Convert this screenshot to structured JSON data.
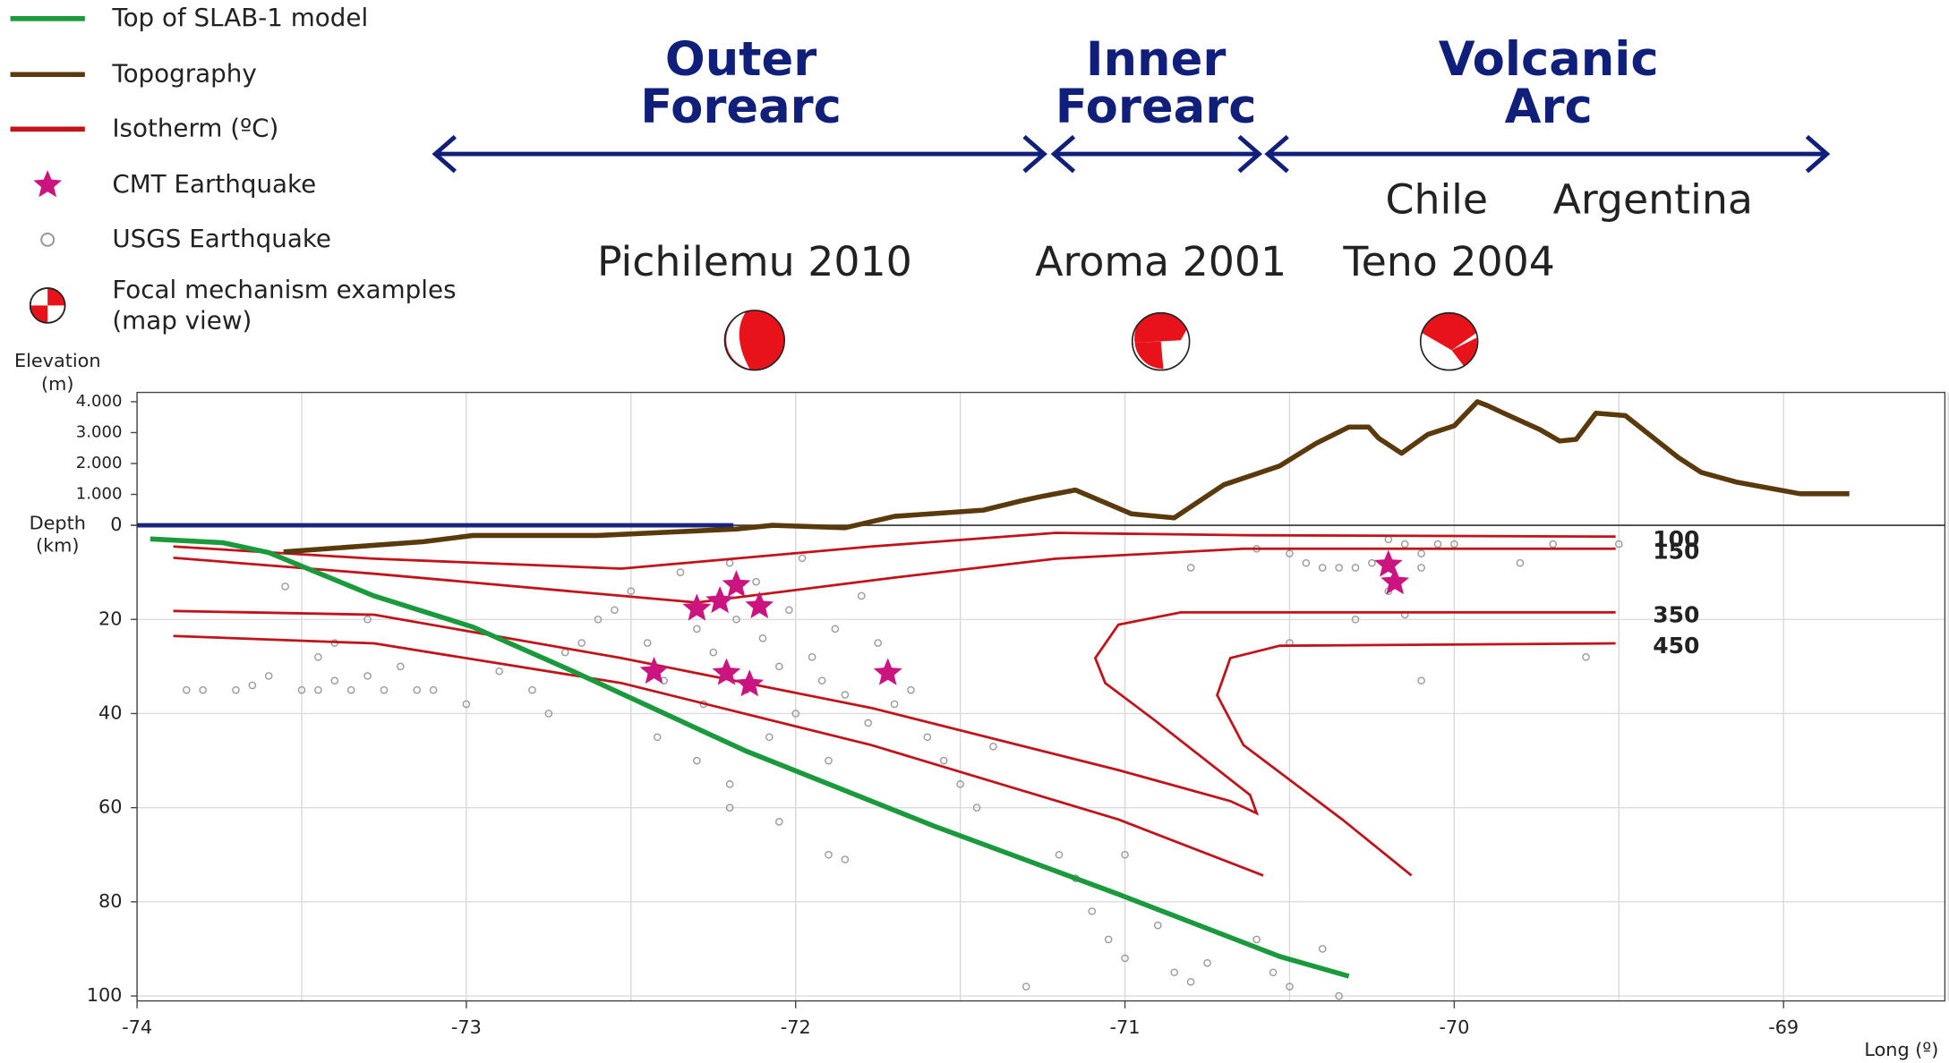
{
  "chart_data": {
    "type": "line",
    "xlabel": "Long (º)",
    "xlim": [
      -74,
      -68.51
    ],
    "xticks": [
      -74,
      -73,
      -72,
      -71,
      -70,
      -69
    ],
    "xminor": [
      -73.5,
      -72.5,
      -71.5,
      -70.5,
      -69.5,
      -68.5
    ],
    "elevation_axis": {
      "label": [
        "Elevation",
        "(m)"
      ],
      "ylim": [
        0,
        4300
      ],
      "yticks": [
        {
          "value": 4000,
          "label": "4.000"
        },
        {
          "value": 3000,
          "label": "3.000"
        },
        {
          "value": 2000,
          "label": "2.000"
        },
        {
          "value": 1000,
          "label": "1.000"
        },
        0
      ]
    },
    "depth_axis": {
      "label": [
        "Depth",
        "(km)"
      ],
      "ylim": [
        0,
        100
      ],
      "inverted": true,
      "yticks": [
        0,
        20,
        40,
        60,
        80,
        100
      ],
      "grid": true
    },
    "annotations": {
      "regions": [
        {
          "lines": [
            "Outer",
            "Forearc"
          ]
        },
        {
          "lines": [
            "Inner",
            "Forearc"
          ]
        },
        {
          "lines": [
            "Volcanic",
            "Arc"
          ]
        }
      ],
      "countries": [
        "Chile",
        "Argentina"
      ],
      "events": [
        "Pichilemu 2010",
        "Aroma 2001",
        "Teno 2004"
      ]
    },
    "focal_legend": [
      "Focal mechanism examples",
      "(map view)"
    ],
    "series": [
      {
        "name": "Top of SLAB-1 model",
        "type": "line",
        "axis": "depth",
        "color": "#1a9a3c",
        "x": [
          -73.96,
          -73.74,
          -73.6,
          -73.28,
          -72.98,
          -72.68,
          -72.15,
          -71.58,
          -71.02,
          -70.53,
          -70.32
        ],
        "values": [
          2.9,
          3.7,
          5.8,
          15,
          21.6,
          30.9,
          48,
          63.9,
          78.4,
          91.6,
          95.8
        ]
      },
      {
        "name": "Topography",
        "type": "line",
        "axis": "elevation",
        "color": "#5a3a0c",
        "x": [
          -73.555,
          -73.13,
          -72.98,
          -72.6,
          -72.18,
          -72.07,
          -71.85,
          -71.7,
          -71.43,
          -71.32,
          -71.25,
          -71.15,
          -70.98,
          -70.85,
          -70.7,
          -70.53,
          -70.42,
          -70.32,
          -70.26,
          -70.23,
          -70.16,
          -70.08,
          -70.0,
          -69.93,
          -69.9,
          -69.85,
          -69.74,
          -69.68,
          -69.63,
          -69.57,
          -69.48,
          -69.32,
          -69.25,
          -69.14,
          -68.95,
          -68.8
        ],
        "values": [
          -860,
          -530,
          -330,
          -330,
          -120,
          0,
          -80,
          290,
          490,
          780,
          940,
          1140,
          370,
          240,
          1310,
          1920,
          2650,
          3180,
          3180,
          2820,
          2330,
          2940,
          3220,
          4000,
          3880,
          3630,
          3100,
          2730,
          2780,
          3630,
          3550,
          2200,
          1710,
          1390,
          1020,
          1020
        ]
      },
      {
        "name": "Isotherm (ºC)",
        "type": "isolines",
        "axis": "depth",
        "color": "#c0141a",
        "lines": [
          {
            "label": "100",
            "x": [
              -73.89,
              -73.28,
              -72.53,
              -71.77,
              -71.21,
              -70.64,
              -69.51
            ],
            "values": [
              4.5,
              7.1,
              9.2,
              4.5,
              1.6,
              2.1,
              2.4
            ]
          },
          {
            "label": "150",
            "x": [
              -73.89,
              -73.28,
              -72.3,
              -71.7,
              -71.21,
              -70.64,
              -69.51
            ],
            "values": [
              6.9,
              10.3,
              16.4,
              11.1,
              7.1,
              5.0,
              5.0
            ]
          },
          {
            "label": "350",
            "x": [
              -73.89,
              -73.28,
              -72.53,
              -71.77,
              -71.02,
              -70.68,
              -70.6,
              -70.62,
              -70.91,
              -71.06,
              -71.09,
              -71.02,
              -70.83,
              -69.51
            ],
            "values": [
              18.2,
              19.0,
              28.2,
              38.8,
              52.0,
              58.6,
              61.2,
              57.3,
              41.4,
              33.5,
              28.2,
              21.1,
              18.5,
              18.5
            ]
          },
          {
            "label": "450",
            "x": [
              -73.89,
              -73.28,
              -72.53,
              -71.77,
              -71.02,
              -70.58,
              null,
              -70.13,
              -70.34,
              -70.64,
              -70.72,
              -70.68,
              -70.53,
              -69.51
            ],
            "values": [
              23.5,
              25.1,
              33.5,
              46.7,
              62.5,
              74.4,
              null,
              74.4,
              62.5,
              46.7,
              36.1,
              28.2,
              25.6,
              25.1
            ]
          }
        ]
      },
      {
        "name": "CMT Earthquake",
        "type": "star",
        "axis": "depth",
        "color": "#cc1480",
        "x": [
          -72.3,
          -72.23,
          -72.18,
          -72.11,
          -72.43,
          -72.21,
          -72.14,
          -71.72,
          -70.2,
          -70.18
        ],
        "values": [
          17.7,
          16.1,
          12.7,
          17.2,
          31.1,
          31.4,
          33.8,
          31.4,
          8.4,
          12.1
        ]
      },
      {
        "name": "USGS Earthquake",
        "type": "scatter",
        "axis": "depth",
        "color": "#9a9a9a",
        "x": [
          -73.5,
          -73.45,
          -73.4,
          -73.35,
          -73.3,
          -73.25,
          -73.2,
          -73.15,
          -73.1,
          -73.0,
          -73.45,
          -73.55,
          -73.3,
          -73.4,
          -73.6,
          -73.7,
          -73.8,
          -73.85,
          -73.65,
          -72.9,
          -72.8,
          -72.75,
          -72.7,
          -72.65,
          -72.6,
          -72.55,
          -72.5,
          -72.45,
          -72.4,
          -72.35,
          -72.3,
          -72.28,
          -72.25,
          -72.2,
          -72.18,
          -72.15,
          -72.12,
          -72.1,
          -72.08,
          -72.05,
          -72.02,
          -72.0,
          -71.98,
          -71.95,
          -71.92,
          -71.9,
          -71.88,
          -71.85,
          -71.8,
          -71.78,
          -71.75,
          -71.7,
          -71.65,
          -71.6,
          -71.55,
          -71.5,
          -71.45,
          -71.4,
          -72.42,
          -72.3,
          -72.2,
          -71.9,
          -71.85,
          -72.2,
          -72.05,
          -71.2,
          -71.15,
          -71.1,
          -71.05,
          -71.0,
          -71.0,
          -70.9,
          -70.85,
          -70.8,
          -70.75,
          -70.6,
          -70.55,
          -70.5,
          -71.3,
          -70.4,
          -70.35,
          -70.3,
          -70.25,
          -70.2,
          -70.15,
          -70.1,
          -70.05,
          -70.0,
          -70.35,
          -70.4,
          -70.45,
          -70.5,
          -70.6,
          -70.2,
          -70.1,
          -70.15,
          -70.3,
          -70.5,
          -70.1,
          -69.8,
          -69.5,
          -69.7,
          -70.8,
          -69.6
        ],
        "values": [
          35,
          35,
          33,
          35,
          32,
          35,
          30,
          35,
          35,
          38,
          28,
          13,
          20,
          25,
          32,
          35,
          35,
          35,
          34,
          31,
          35,
          40,
          27,
          25,
          20,
          18,
          14,
          25,
          33,
          10,
          22,
          38,
          27,
          8,
          20,
          35,
          12,
          24,
          45,
          30,
          18,
          40,
          7,
          28,
          33,
          50,
          22,
          36,
          15,
          42,
          25,
          38,
          35,
          45,
          50,
          55,
          60,
          47,
          45,
          50,
          55,
          70,
          71,
          60,
          63,
          70,
          75,
          82,
          88,
          70,
          92,
          85,
          95,
          97,
          93,
          88,
          95,
          98,
          98,
          90,
          100,
          9,
          8,
          3,
          4,
          6,
          4,
          4,
          9,
          9,
          8,
          6,
          5,
          14,
          9,
          19,
          20,
          25,
          33,
          8,
          4,
          4,
          9,
          28
        ]
      }
    ]
  }
}
